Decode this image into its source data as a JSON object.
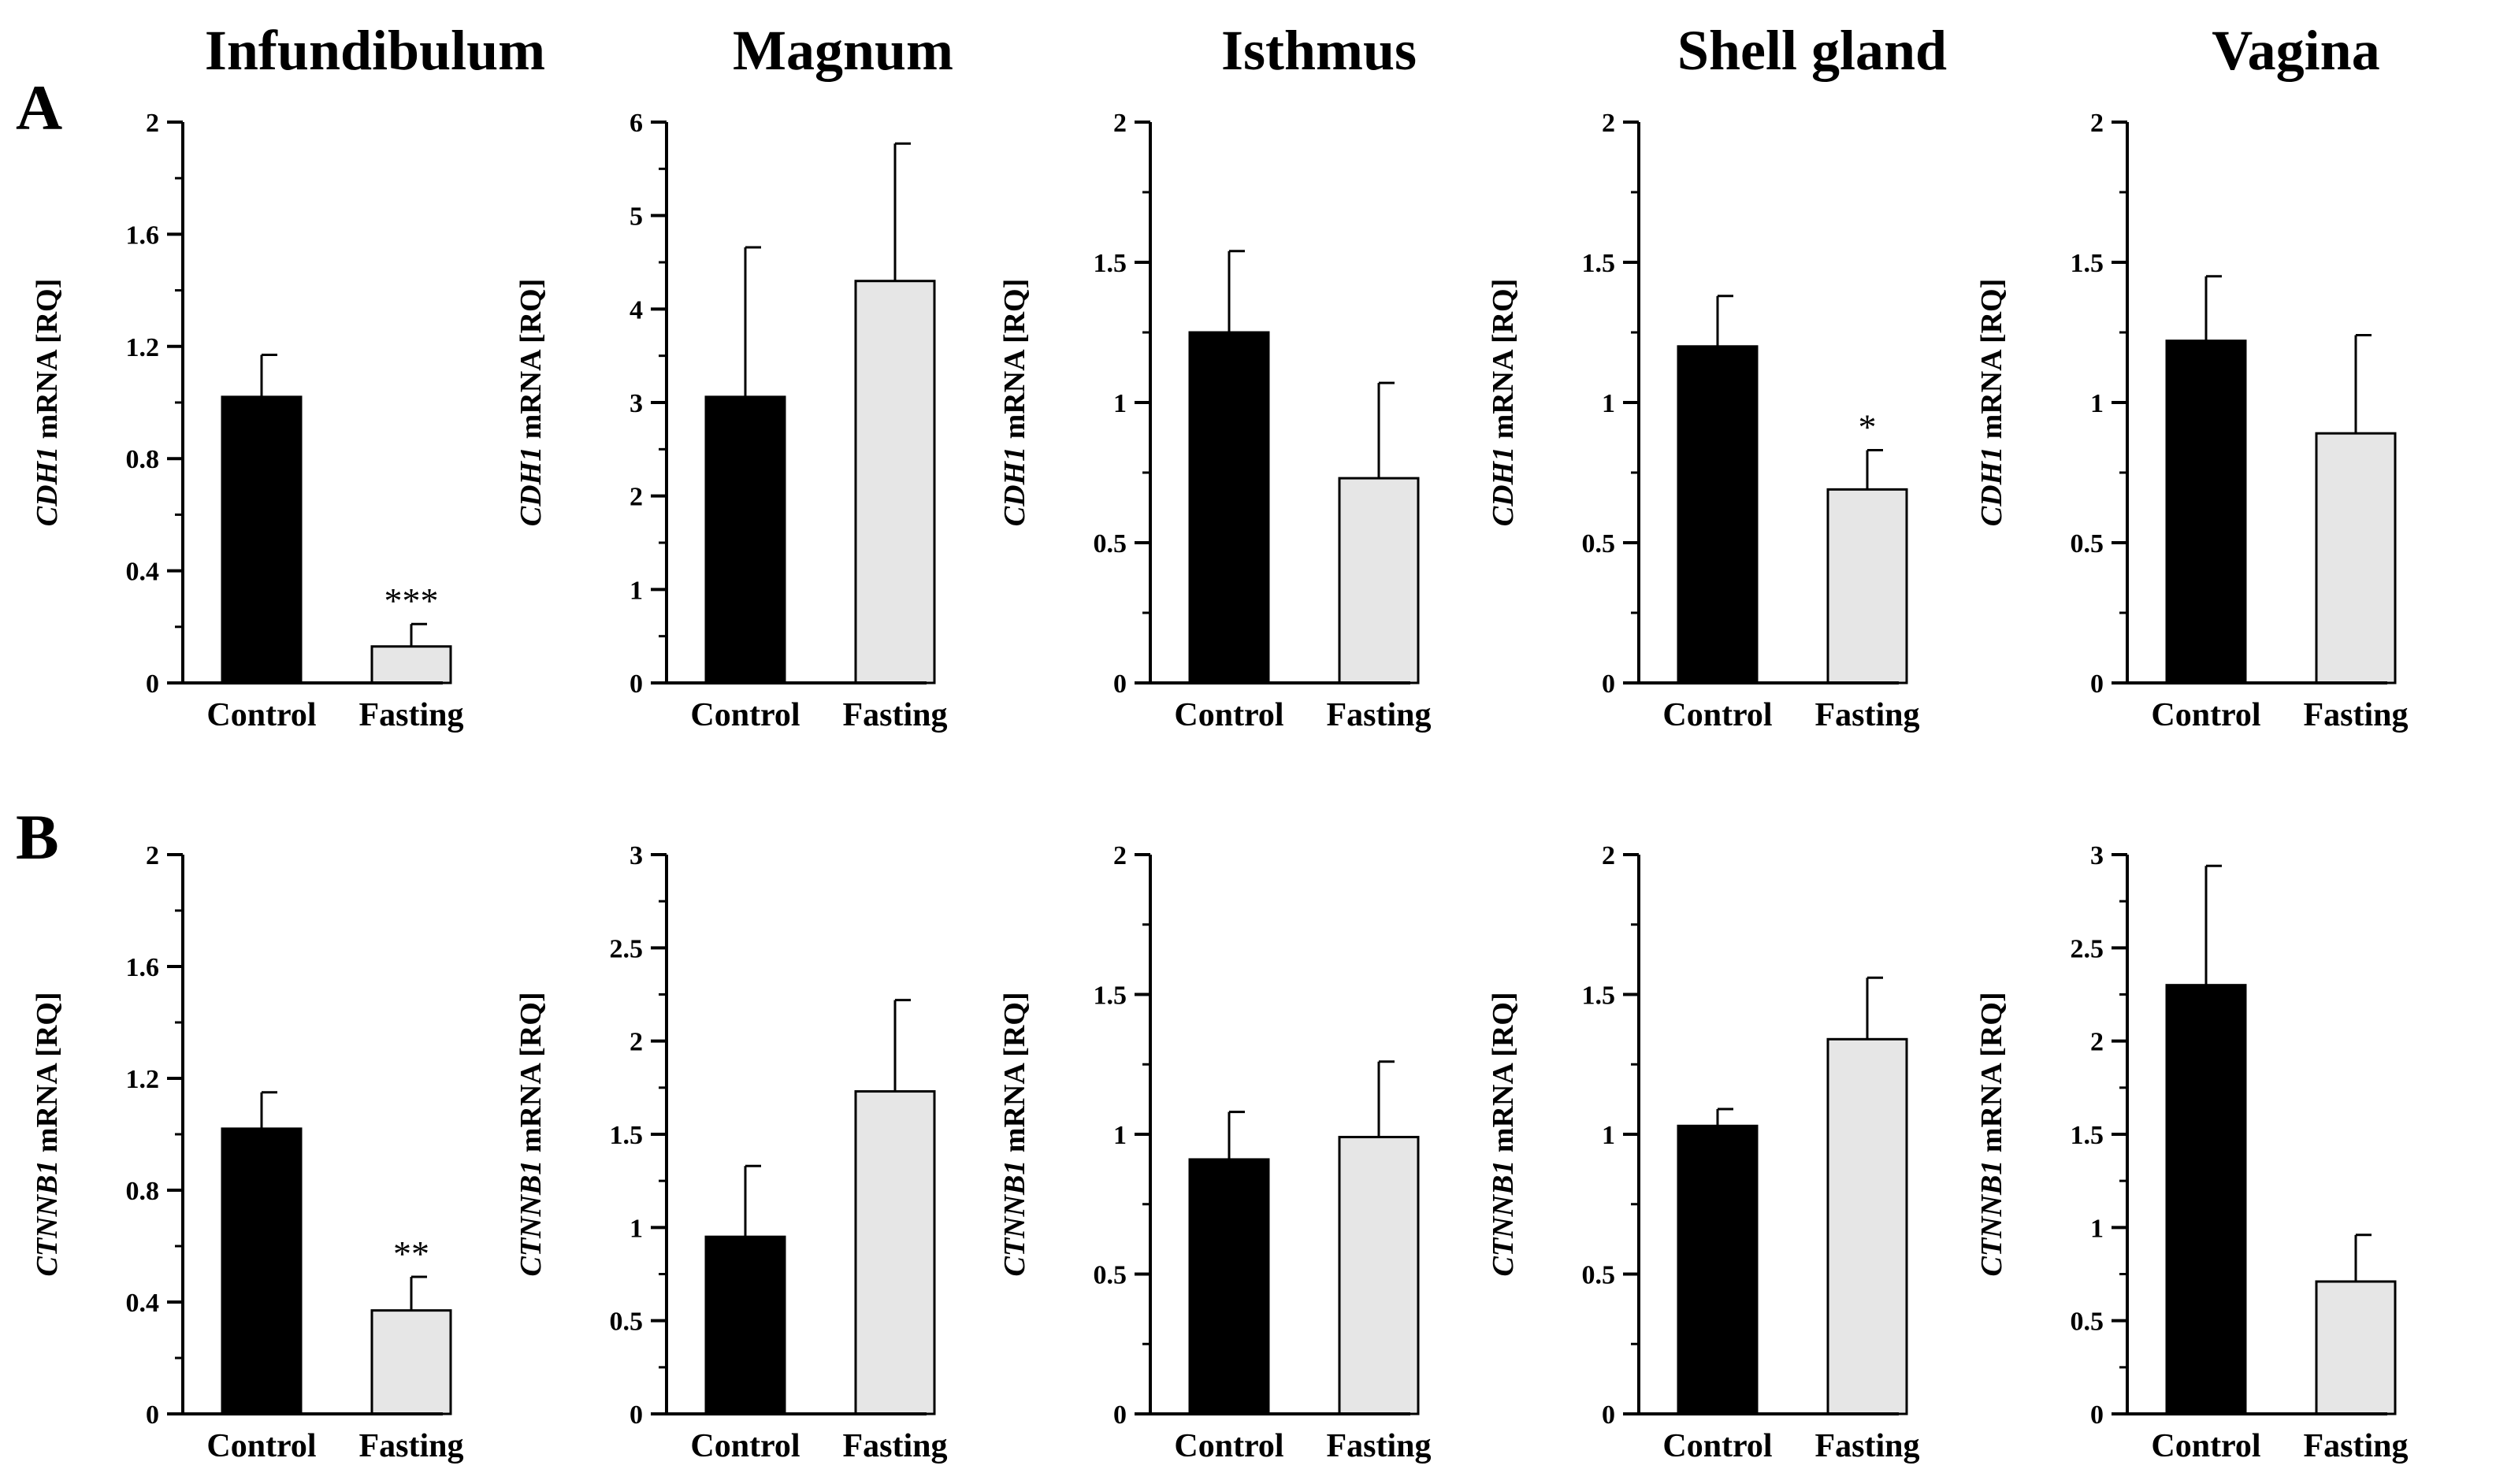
{
  "columns": [
    "Infundibulum",
    "Magnum",
    "Isthmus",
    "Shell gland",
    "Vagina"
  ],
  "rows": [
    {
      "label": "A",
      "gene": "CDH1",
      "ylabel_suffix": " mRNA [RQ]"
    },
    {
      "label": "B",
      "gene": "CTNNB1",
      "ylabel_suffix": " mRNA [RQ]"
    }
  ],
  "colors": {
    "control": "#000000",
    "fasting": "#e6e6e6"
  },
  "chart_data": [
    {
      "type": "bar",
      "row": 0,
      "col": 0,
      "title": "Infundibulum",
      "ylabel": "CDH1 mRNA [RQ]",
      "categories": [
        "Control",
        "Fasting"
      ],
      "values": [
        1.02,
        0.13
      ],
      "errors": [
        0.15,
        0.08
      ],
      "significance": [
        "",
        "***"
      ],
      "ylim": [
        0,
        2
      ],
      "ticks": [
        "0",
        "0.4",
        "0.8",
        "1.2",
        "1.6",
        "2"
      ],
      "minor_step": 0.2
    },
    {
      "type": "bar",
      "row": 0,
      "col": 1,
      "title": "Magnum",
      "ylabel": "CDH1 mRNA [RQ]",
      "categories": [
        "Control",
        "Fasting"
      ],
      "values": [
        3.06,
        4.3
      ],
      "errors": [
        1.6,
        1.47
      ],
      "significance": [
        "",
        ""
      ],
      "ylim": [
        0,
        6
      ],
      "ticks": [
        "0",
        "1",
        "2",
        "3",
        "4",
        "5",
        "6"
      ],
      "minor_step": 0.5
    },
    {
      "type": "bar",
      "row": 0,
      "col": 2,
      "title": "Isthmus",
      "ylabel": "CDH1 mRNA [RQ]",
      "categories": [
        "Control",
        "Fasting"
      ],
      "values": [
        1.25,
        0.73
      ],
      "errors": [
        0.29,
        0.34
      ],
      "significance": [
        "",
        ""
      ],
      "ylim": [
        0,
        2
      ],
      "ticks": [
        "0",
        "0.5",
        "1",
        "1.5",
        "2"
      ],
      "minor_step": 0.25
    },
    {
      "type": "bar",
      "row": 0,
      "col": 3,
      "title": "Shell gland",
      "ylabel": "CDH1 mRNA [RQ]",
      "categories": [
        "Control",
        "Fasting"
      ],
      "values": [
        1.2,
        0.69
      ],
      "errors": [
        0.18,
        0.14
      ],
      "significance": [
        "",
        "*"
      ],
      "ylim": [
        0,
        2
      ],
      "ticks": [
        "0",
        "0.5",
        "1",
        "1.5",
        "2"
      ],
      "minor_step": 0.25
    },
    {
      "type": "bar",
      "row": 0,
      "col": 4,
      "title": "Vagina",
      "ylabel": "CDH1 mRNA [RQ]",
      "categories": [
        "Control",
        "Fasting"
      ],
      "values": [
        1.22,
        0.89
      ],
      "errors": [
        0.23,
        0.35
      ],
      "significance": [
        "",
        ""
      ],
      "ylim": [
        0,
        2
      ],
      "ticks": [
        "0",
        "0.5",
        "1",
        "1.5",
        "2"
      ],
      "minor_step": 0.25
    },
    {
      "type": "bar",
      "row": 1,
      "col": 0,
      "title": "Infundibulum",
      "ylabel": "CTNNB1 mRNA [RQ]",
      "categories": [
        "Control",
        "Fasting"
      ],
      "values": [
        1.02,
        0.37
      ],
      "errors": [
        0.13,
        0.12
      ],
      "significance": [
        "",
        "**"
      ],
      "ylim": [
        0,
        2
      ],
      "ticks": [
        "0",
        "0.4",
        "0.8",
        "1.2",
        "1.6",
        "2"
      ],
      "minor_step": 0.2
    },
    {
      "type": "bar",
      "row": 1,
      "col": 1,
      "title": "Magnum",
      "ylabel": "CTNNB1 mRNA [RQ]",
      "categories": [
        "Control",
        "Fasting"
      ],
      "values": [
        0.95,
        1.73
      ],
      "errors": [
        0.38,
        0.49
      ],
      "significance": [
        "",
        ""
      ],
      "ylim": [
        0,
        3
      ],
      "ticks": [
        "0",
        "0.5",
        "1",
        "1.5",
        "2",
        "2.5",
        "3"
      ],
      "minor_step": 0.25
    },
    {
      "type": "bar",
      "row": 1,
      "col": 2,
      "title": "Isthmus",
      "ylabel": "CTNNB1 mRNA [RQ]",
      "categories": [
        "Control",
        "Fasting"
      ],
      "values": [
        0.91,
        0.99
      ],
      "errors": [
        0.17,
        0.27
      ],
      "significance": [
        "",
        ""
      ],
      "ylim": [
        0,
        2
      ],
      "ticks": [
        "0",
        "0.5",
        "1",
        "1.5",
        "2"
      ],
      "minor_step": 0.25
    },
    {
      "type": "bar",
      "row": 1,
      "col": 3,
      "title": "Shell gland",
      "ylabel": "CTNNB1 mRNA [RQ]",
      "categories": [
        "Control",
        "Fasting"
      ],
      "values": [
        1.03,
        1.34
      ],
      "errors": [
        0.06,
        0.22
      ],
      "significance": [
        "",
        ""
      ],
      "ylim": [
        0,
        2
      ],
      "ticks": [
        "0",
        "0.5",
        "1",
        "1.5",
        "2"
      ],
      "minor_step": 0.25
    },
    {
      "type": "bar",
      "row": 1,
      "col": 4,
      "title": "Vagina",
      "ylabel": "CTNNB1 mRNA [RQ]",
      "categories": [
        "Control",
        "Fasting"
      ],
      "values": [
        2.3,
        0.71
      ],
      "errors": [
        0.64,
        0.25
      ],
      "significance": [
        "",
        ""
      ],
      "ylim": [
        0,
        3
      ],
      "ticks": [
        "0",
        "0.5",
        "1",
        "1.5",
        "2",
        "2.5",
        "3"
      ],
      "minor_step": 0.25
    }
  ]
}
